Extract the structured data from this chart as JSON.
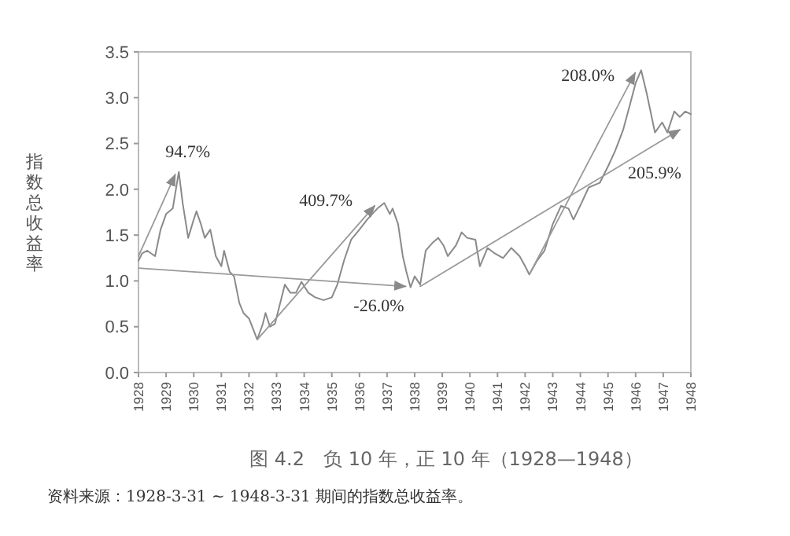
{
  "chart_data": {
    "type": "line",
    "title": "图 4.2　负 10 年，正 10 年（1928—1948）",
    "ylabel": "指数总收益率",
    "annotations": [
      "94.7%",
      "409.7%",
      "-26.0%",
      "208.0%",
      "205.9%",
      "资料来源：1928-3-31 ~ 1948-3-31 期间的指数总收益率。"
    ],
    "xlim": [
      1928,
      1948
    ],
    "xticks": [
      1928,
      1929,
      1930,
      1931,
      1932,
      1933,
      1934,
      1935,
      1936,
      1937,
      1938,
      1939,
      1940,
      1941,
      1942,
      1943,
      1944,
      1945,
      1946,
      1947,
      1948
    ],
    "ylim": [
      0,
      3.5
    ],
    "yticks": [
      {
        "value": 0,
        "label": "0.0"
      },
      {
        "value": 0.5,
        "label": "0.5"
      },
      {
        "value": 1,
        "label": "1.0"
      },
      {
        "value": 1.5,
        "label": "1.5"
      },
      {
        "value": 2,
        "label": "2.0"
      },
      {
        "value": 2.5,
        "label": "2.5"
      },
      {
        "value": 3,
        "label": "3.0"
      },
      {
        "value": 3.5,
        "label": "3.5"
      }
    ],
    "grid": false,
    "series": [
      {
        "color": "#8a8a8a",
        "x": [
          1928.0,
          1928.13,
          1928.32,
          1928.6,
          1928.8,
          1929.0,
          1929.24,
          1929.46,
          1929.6,
          1929.8,
          1930.0,
          1930.1,
          1930.26,
          1930.4,
          1930.6,
          1930.8,
          1931.0,
          1931.1,
          1931.3,
          1931.46,
          1931.65,
          1931.8,
          1932.0,
          1932.3,
          1932.5,
          1932.6,
          1932.76,
          1932.94,
          1933.3,
          1933.5,
          1933.7,
          1933.9,
          1934.15,
          1934.4,
          1934.7,
          1935.0,
          1935.2,
          1935.44,
          1935.7,
          1936.0,
          1936.28,
          1936.46,
          1936.65,
          1936.9,
          1937.1,
          1937.2,
          1937.4,
          1937.57,
          1937.7,
          1937.85,
          1938.0,
          1938.2,
          1938.4,
          1938.66,
          1938.85,
          1939.04,
          1939.2,
          1939.5,
          1939.7,
          1939.9,
          1940.2,
          1940.36,
          1940.64,
          1940.9,
          1941.2,
          1941.5,
          1941.8,
          1942.0,
          1942.15,
          1942.43,
          1942.7,
          1943.0,
          1943.3,
          1943.57,
          1943.75,
          1944.04,
          1944.3,
          1944.7,
          1945.0,
          1945.26,
          1945.55,
          1945.8,
          1946.0,
          1946.2,
          1946.4,
          1946.7,
          1946.96,
          1947.15,
          1947.4,
          1947.6,
          1947.8,
          1948.0
        ],
        "values": [
          1.22,
          1.3,
          1.33,
          1.27,
          1.56,
          1.73,
          1.79,
          2.19,
          1.85,
          1.47,
          1.67,
          1.76,
          1.62,
          1.47,
          1.56,
          1.27,
          1.16,
          1.33,
          1.1,
          1.05,
          0.76,
          0.65,
          0.59,
          0.36,
          0.53,
          0.65,
          0.5,
          0.53,
          0.96,
          0.87,
          0.87,
          0.99,
          0.87,
          0.82,
          0.79,
          0.82,
          0.96,
          1.22,
          1.45,
          1.56,
          1.67,
          1.73,
          1.79,
          1.85,
          1.73,
          1.79,
          1.62,
          1.27,
          1.1,
          0.93,
          1.05,
          0.96,
          1.33,
          1.42,
          1.47,
          1.39,
          1.27,
          1.39,
          1.53,
          1.47,
          1.45,
          1.16,
          1.36,
          1.3,
          1.25,
          1.36,
          1.27,
          1.16,
          1.07,
          1.22,
          1.33,
          1.62,
          1.82,
          1.79,
          1.67,
          1.85,
          2.02,
          2.07,
          2.25,
          2.42,
          2.65,
          2.93,
          3.16,
          3.3,
          3.05,
          2.62,
          2.73,
          2.62,
          2.85,
          2.79,
          2.85,
          2.82
        ]
      },
      {
        "color": "#9a9a9a",
        "x": [
          1928.0,
          1929.33
        ],
        "values": [
          1.27,
          2.16
        ]
      },
      {
        "color": "#9a9a9a",
        "x": [
          1932.3,
          1936.55
        ],
        "values": [
          0.36,
          1.82
        ]
      },
      {
        "color": "#9a9a9a",
        "x": [
          1928.0,
          1937.67
        ],
        "values": [
          1.14,
          0.94
        ]
      },
      {
        "color": "#9a9a9a",
        "x": [
          1942.15,
          1945.98
        ],
        "values": [
          1.07,
          3.27
        ]
      },
      {
        "color": "#9a9a9a",
        "x": [
          1938.2,
          1947.6
        ],
        "values": [
          0.94,
          2.65
        ]
      }
    ]
  }
}
